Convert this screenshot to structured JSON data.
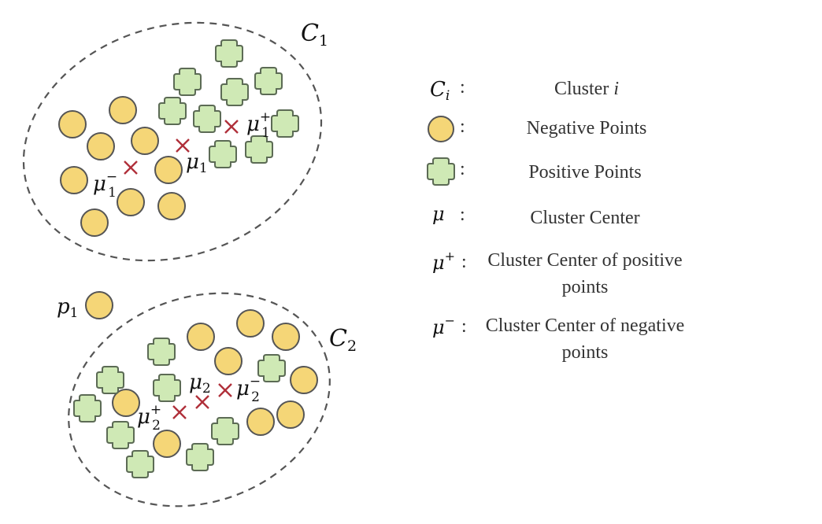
{
  "colors": {
    "negative_fill": "#f5d677",
    "negative_stroke": "#555555",
    "positive_fill": "#cfe9b5",
    "positive_stroke": "#5c6b55",
    "center_mark": "#b0303a",
    "ellipse_stroke": "#555555"
  },
  "clusters": [
    {
      "label_main": "C",
      "label_sub": "1",
      "center_labels": {
        "mu": {
          "main": "μ",
          "sub": "1"
        },
        "mu_plus": {
          "main": "μ",
          "sup": "+",
          "sub": "1"
        },
        "mu_minus": {
          "main": "μ",
          "sup": "−",
          "sub": "1"
        }
      }
    },
    {
      "label_main": "C",
      "label_sub": "2",
      "center_labels": {
        "mu": {
          "main": "μ",
          "sub": "2"
        },
        "mu_plus": {
          "main": "μ",
          "sup": "+",
          "sub": "2"
        },
        "mu_minus": {
          "main": "μ",
          "sup": "−",
          "sub": "2"
        }
      }
    }
  ],
  "outlier": {
    "main": "p",
    "sub": "1"
  },
  "legend": {
    "items": [
      {
        "symbol": "C_i",
        "colon": ":",
        "text": "Cluster ",
        "text_italic": "i"
      },
      {
        "symbol": "negative-circle",
        "colon": ":",
        "text": "Negative Points"
      },
      {
        "symbol": "positive-cross",
        "colon": ":",
        "text": "Positive Points"
      },
      {
        "symbol": "μ",
        "colon": ":",
        "text": "Cluster Center"
      },
      {
        "symbol": "μ+",
        "colon": ":",
        "text_line1": "Cluster Center of positive",
        "text_line2": "points"
      },
      {
        "symbol": "μ−",
        "colon": ":",
        "text_line1": "Cluster Center of negative",
        "text_line2": "points"
      }
    ],
    "c_main": "C",
    "c_sub": "i",
    "mu": "μ",
    "plus": "+",
    "minus": "−"
  }
}
